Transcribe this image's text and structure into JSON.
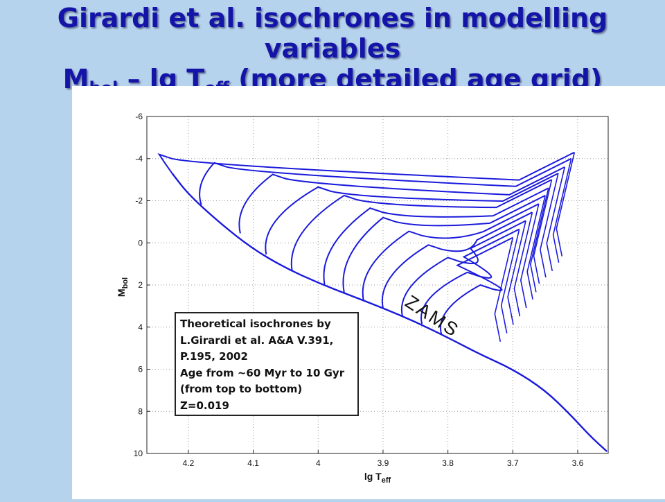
{
  "slide": {
    "title_line1": "Girardi et al. isochrones in modelling variables",
    "title_line2_main": "M",
    "title_line2_sub": "bol",
    "title_line2_mid": " – lg T",
    "title_line2_sub2": "eff",
    "title_line2_end": " (more detailed age grid)"
  },
  "chart_data": {
    "type": "line",
    "xlabel_main": "lg T",
    "xlabel_sub": "eff",
    "ylabel_main": "M",
    "ylabel_sub": "bol",
    "xlim": [
      4.264,
      3.553
    ],
    "ylim": [
      -6,
      10
    ],
    "x_ticks": [
      4.2,
      4.1,
      4,
      3.9,
      3.8,
      3.7,
      3.6
    ],
    "x_tick_labels": [
      "4.2",
      "4.1",
      "4",
      "3.9",
      "3.8",
      "3.7",
      "3.6"
    ],
    "y_ticks": [
      -6,
      -4,
      -2,
      0,
      2,
      4,
      6,
      8,
      10
    ],
    "y_tick_labels": [
      "-6",
      "-4",
      "-2",
      "0",
      "2",
      "4",
      "6",
      "8",
      "10"
    ],
    "grid": true,
    "line_color": "#1a1adc",
    "annotation": "ZAMS",
    "legend_text": [
      "Theoretical isochrones by",
      "L.Girardi et al. A&A V.391,",
      "P.195, 2002",
      "Age from ~60 Myr to 10 Gyr",
      "(from top to bottom)",
      "Z=0.019"
    ],
    "main_sequence": [
      {
        "x": 4.225,
        "y": -3.3
      },
      {
        "x": 4.2,
        "y": -2.3
      },
      {
        "x": 4.15,
        "y": -0.9
      },
      {
        "x": 4.1,
        "y": 0.3
      },
      {
        "x": 4.05,
        "y": 1.2
      },
      {
        "x": 4.0,
        "y": 1.9
      },
      {
        "x": 3.95,
        "y": 2.5
      },
      {
        "x": 3.9,
        "y": 3.1
      },
      {
        "x": 3.85,
        "y": 3.75
      },
      {
        "x": 3.8,
        "y": 4.5
      },
      {
        "x": 3.75,
        "y": 5.3
      },
      {
        "x": 3.7,
        "y": 6.0
      },
      {
        "x": 3.65,
        "y": 7.0
      },
      {
        "x": 3.61,
        "y": 8.2
      },
      {
        "x": 3.58,
        "y": 9.2
      },
      {
        "x": 3.555,
        "y": 9.9
      }
    ],
    "isochrones": [
      {
        "to": 4.225,
        "y": -3.3,
        "tip": [
          4.245,
          -4.2
        ],
        "giant": [
          3.605,
          -4.3
        ]
      },
      {
        "to": 4.18,
        "y": -1.8,
        "tip": [
          4.16,
          -3.8
        ],
        "giant": [
          3.61,
          -4.0
        ]
      },
      {
        "to": 4.12,
        "y": -0.45,
        "tip": [
          4.07,
          -3.25
        ],
        "giant": [
          3.62,
          -3.6
        ]
      },
      {
        "to": 4.08,
        "y": 0.55,
        "tip": [
          4.0,
          -2.65
        ],
        "giant": [
          3.63,
          -3.3
        ]
      },
      {
        "to": 4.04,
        "y": 1.35,
        "tip": [
          3.96,
          -2.25
        ],
        "giant": [
          3.64,
          -3.0
        ]
      },
      {
        "to": 3.99,
        "y": 2.0,
        "tip": [
          3.92,
          -1.65
        ],
        "giant": [
          3.645,
          -2.6
        ]
      },
      {
        "to": 3.96,
        "y": 2.35,
        "tip": [
          3.9,
          -1.2
        ],
        "giant": [
          3.65,
          -2.25
        ]
      },
      {
        "to": 3.93,
        "y": 2.75,
        "tip": [
          3.86,
          -0.55
        ],
        "giant": [
          3.66,
          -1.85
        ]
      },
      {
        "to": 3.9,
        "y": 3.1,
        "tip": [
          3.83,
          0.1
        ],
        "giant": [
          3.67,
          -1.45
        ]
      },
      {
        "to": 3.87,
        "y": 3.5,
        "tip": [
          3.8,
          0.7
        ],
        "giant": [
          3.68,
          -1.05
        ]
      },
      {
        "to": 3.84,
        "y": 3.85,
        "tip": [
          3.77,
          1.4
        ],
        "giant": [
          3.69,
          -0.65
        ]
      },
      {
        "to": 3.81,
        "y": 4.35,
        "tip": [
          3.75,
          2.0
        ],
        "giant": [
          3.7,
          -0.25
        ]
      }
    ]
  }
}
